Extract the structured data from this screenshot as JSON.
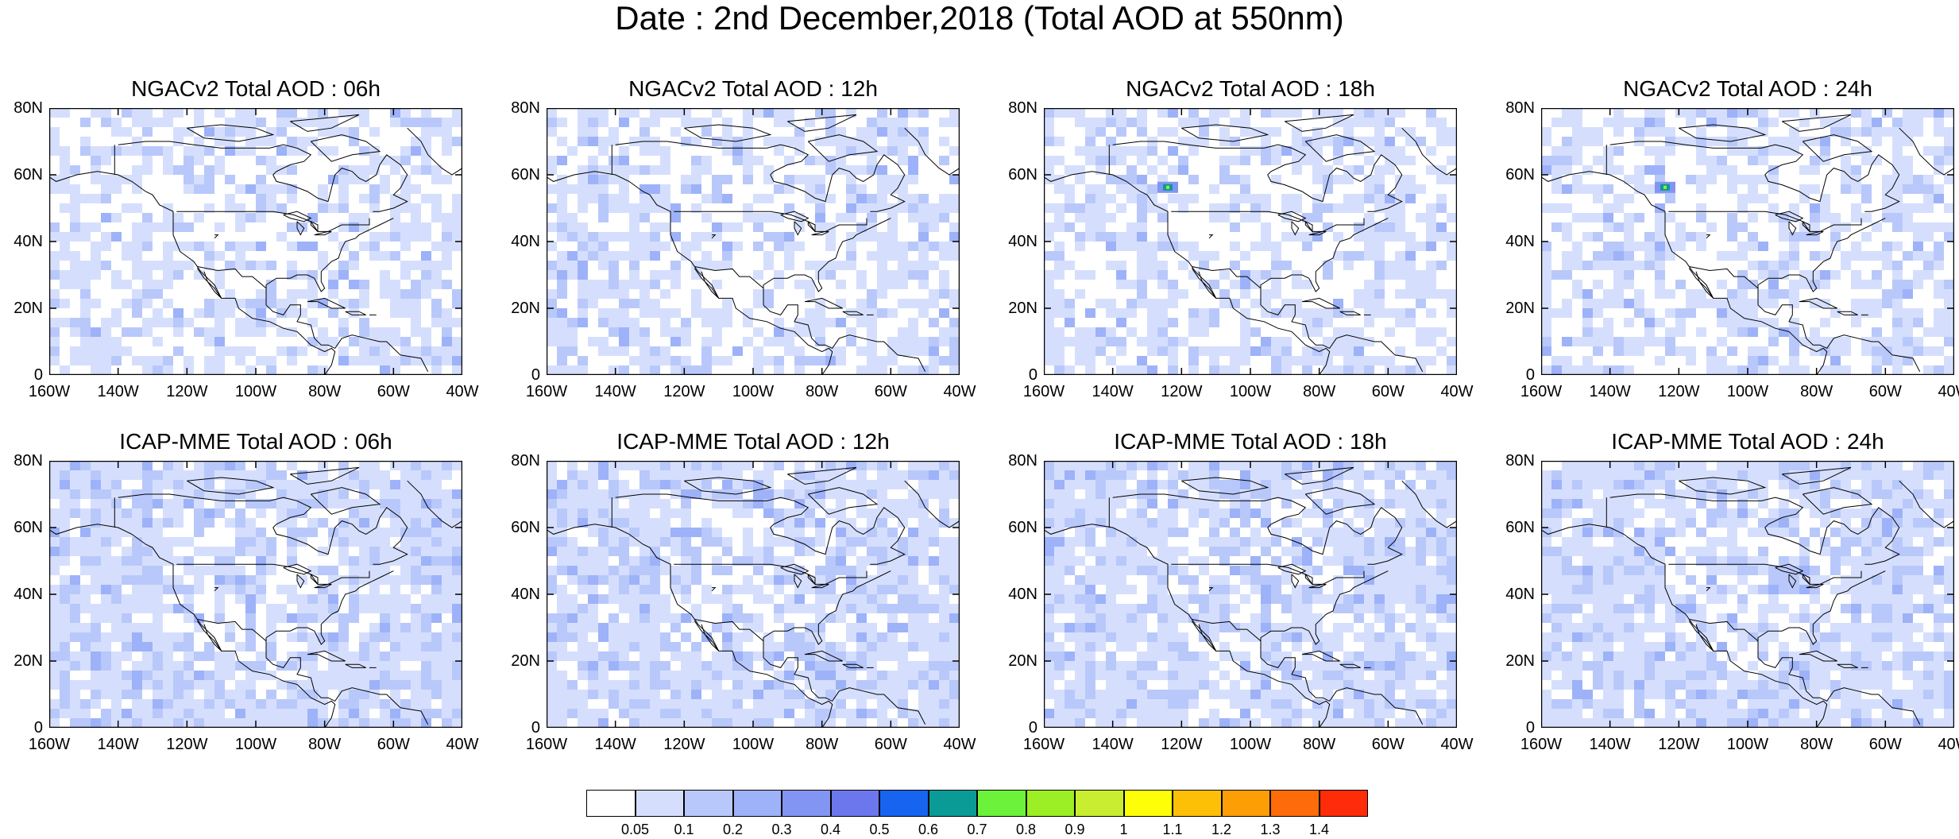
{
  "figure_title": "Date : 2nd December,2018 (Total AOD at 550nm)",
  "chart_data": {
    "type": "heatmap",
    "title": "Date : 2nd December,2018 (Total AOD at 550nm)",
    "x_range": [
      -160,
      -40
    ],
    "y_range": [
      0,
      80
    ],
    "colorbar": {
      "levels": [
        "0.05",
        "0.1",
        "0.2",
        "0.3",
        "0.4",
        "0.5",
        "0.6",
        "0.7",
        "0.8",
        "0.9",
        "1",
        "1.1",
        "1.2",
        "1.3",
        "1.4"
      ],
      "colors": [
        "#ffffff",
        "#d5dffd",
        "#b9c8fa",
        "#9db2f8",
        "#8395f2",
        "#6c77ee",
        "#1764f0",
        "#0b9b97",
        "#6cf23a",
        "#9bef24",
        "#c8ee2f",
        "#fefe08",
        "#fec007",
        "#fd9e07",
        "#fd6c08",
        "#fe2c08"
      ]
    },
    "panels": [
      {
        "title": "NGACv2 Total AOD : 06h",
        "model": "NGACv2",
        "hour": "06h"
      },
      {
        "title": "NGACv2 Total AOD : 12h",
        "model": "NGACv2",
        "hour": "12h"
      },
      {
        "title": "NGACv2 Total AOD : 18h",
        "model": "NGACv2",
        "hour": "18h"
      },
      {
        "title": "NGACv2 Total AOD : 24h",
        "model": "NGACv2",
        "hour": "24h"
      },
      {
        "title": "ICAP-MME Total AOD : 06h",
        "model": "ICAP-MME",
        "hour": "06h"
      },
      {
        "title": "ICAP-MME Total AOD : 12h",
        "model": "ICAP-MME",
        "hour": "12h"
      },
      {
        "title": "ICAP-MME Total AOD : 18h",
        "model": "ICAP-MME",
        "hour": "18h"
      },
      {
        "title": "ICAP-MME Total AOD : 24h",
        "model": "ICAP-MME",
        "hour": "24h"
      }
    ]
  },
  "axes": {
    "lat_labels": [
      "80N",
      "60N",
      "40N",
      "20N",
      "0"
    ],
    "lon_labels": [
      "160W",
      "140W",
      "120W",
      "100W",
      "80W",
      "60W",
      "40W"
    ]
  }
}
